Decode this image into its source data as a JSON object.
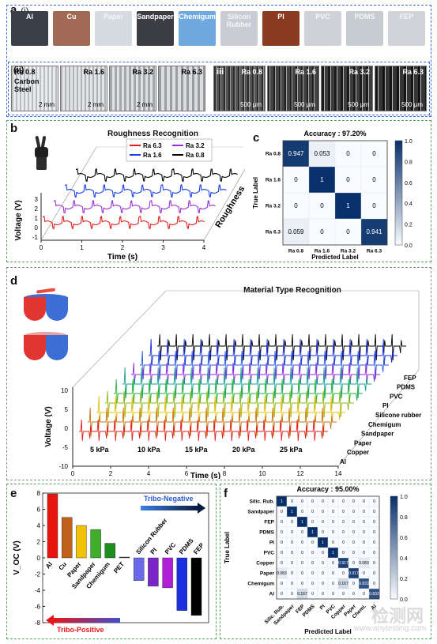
{
  "panel_a": {
    "label": "a",
    "sub_i": "(i)",
    "sub_ii": "(ii)",
    "sub_iii": "iii",
    "materials": [
      {
        "name": "Al",
        "color": "#3a3f4a"
      },
      {
        "name": "Cu",
        "color": "#a06a55"
      },
      {
        "name": "Paper",
        "color": "#d6dbe2"
      },
      {
        "name": "Sandpaper",
        "color": "#3d3e44"
      },
      {
        "name": "Chemigum",
        "color": "#6fa9de"
      },
      {
        "name": "Silicon Rubber",
        "color": "#c9cdd3"
      },
      {
        "name": "PI",
        "color": "#8a3b22"
      },
      {
        "name": "PVC",
        "color": "#cfd3d8"
      },
      {
        "name": "PDMS",
        "color": "#c7ccd2"
      },
      {
        "name": "FEP",
        "color": "#d0d4d9"
      }
    ],
    "steel_samples": [
      {
        "label": "Ra 0.8",
        "scale": "2 mm",
        "extra": "Carbon Steel"
      },
      {
        "label": "Ra 1.6",
        "scale": "2 mm"
      },
      {
        "label": "Ra 3.2",
        "scale": "2 mm"
      },
      {
        "label": "Ra 6.3",
        "scale": ""
      }
    ],
    "micro_samples": [
      {
        "label": "Ra 0.8",
        "scale": "500 μm"
      },
      {
        "label": "Ra 1.6",
        "scale": "500 μm"
      },
      {
        "label": "Ra 3.2",
        "scale": "500 μm"
      },
      {
        "label": "Ra 6.3",
        "scale": "500 μm"
      }
    ]
  },
  "panel_b": {
    "label": "b",
    "title": "Roughness Recognition",
    "ylabel": "Voltage (V)",
    "xlabel": "Time (s)",
    "depth_label": "Roughness",
    "legend": [
      "Ra 6.3",
      "Ra 3.2",
      "Ra 1.6",
      "Ra 0.8"
    ],
    "colors": {
      "Ra 6.3": "#e0201b",
      "Ra 3.2": "#9b2fd6",
      "Ra 1.6": "#1a3fe0",
      "Ra 0.8": "#000000"
    },
    "x_ticks": [
      "0",
      "1",
      "2",
      "3",
      "4"
    ],
    "y_ticks": [
      "-1",
      "0",
      "1",
      "2",
      "3"
    ]
  },
  "panel_c": {
    "label": "c",
    "title": "Accuracy : 97.20%",
    "ylabel": "True Label",
    "xlabel": "Predicted Label",
    "rows": [
      "Ra 0.8",
      "Ra 1.6",
      "Ra 3.2",
      "Ra 6.3"
    ],
    "cols": [
      "Ra 0.8",
      "Ra 1.6",
      "Ra 3.2",
      "Ra 6.3"
    ],
    "matrix": [
      [
        0.947,
        0.053,
        0,
        0
      ],
      [
        0,
        1,
        0,
        0
      ],
      [
        0,
        0,
        1,
        0
      ],
      [
        0.059,
        0,
        0,
        0.941
      ]
    ],
    "colorbar_ticks": [
      "1.0",
      "0.8",
      "0.6",
      "0.4",
      "0.2",
      "0.0"
    ]
  },
  "panel_d": {
    "label": "d",
    "title": "Material Type Recognition",
    "ylabel": "Voltage (V)",
    "xlabel": "Time (s)",
    "x_ticks": [
      "0",
      "2",
      "4",
      "6",
      "8",
      "10",
      "12",
      "14"
    ],
    "y_ticks": [
      "10",
      "5",
      "0",
      "-5",
      "-10"
    ],
    "pressures": [
      "5 kPa",
      "10 kPa",
      "15 kPa",
      "20 kPa",
      "25 kPa"
    ],
    "materials": [
      "Al",
      "Copper",
      "Paper",
      "Sandpaper",
      "Chemigum",
      "Silicone rubber",
      "PI",
      "PVC",
      "PDMS",
      "FEP"
    ],
    "series_colors": [
      "#e0201b",
      "#c9761a",
      "#e3c21a",
      "#8ab81c",
      "#27b23a",
      "#1aa38e",
      "#8f2fd6",
      "#2f5ae0",
      "#1a2fd0",
      "#000000"
    ]
  },
  "panel_e": {
    "label": "e",
    "ylabel": "V_OC (V)",
    "tribo_negative": "Tribo-Negative",
    "tribo_positive": "Tribo-Positive",
    "y_ticks": [
      "8",
      "6",
      "4",
      "2",
      "0",
      "-2",
      "-4",
      "-6",
      "-8"
    ]
  },
  "chart_data": {
    "type": "bar",
    "categories": [
      "Al",
      "Cu",
      "Paper",
      "Sandpaper",
      "Chemigum",
      "PET",
      "Silicon Rubber",
      "PI",
      "PVC",
      "PDMS",
      "FEP"
    ],
    "values": [
      7.9,
      5.0,
      4.0,
      3.5,
      1.8,
      0.1,
      -2.8,
      -3.5,
      -3.7,
      -6.5,
      -7.1
    ],
    "colors": [
      "#e8150f",
      "#c0601a",
      "#f2c200",
      "#3fae2a",
      "#1d8f1d",
      "#444444",
      "#6a6ae8",
      "#7a25c8",
      "#b01fd8",
      "#1a2fe0",
      "#000000"
    ],
    "ylabel": "V_OC (V)",
    "ylim": [
      -8,
      8
    ]
  },
  "panel_f": {
    "label": "f",
    "title": "Accuracy : 95.00%",
    "ylabel": "True Label",
    "xlabel": "Predicted Label",
    "rows": [
      "Silic. Rub.",
      "Sandpaper",
      "FEP",
      "PDMS",
      "PI",
      "PVC",
      "Copper",
      "Paper",
      "Chemigum",
      "Al"
    ],
    "cols": [
      "Silic. Rub.",
      "Sandpaper",
      "FEP",
      "PDMS",
      "PI",
      "PVC",
      "Copper",
      "Paper",
      "Chemi.",
      "Al"
    ],
    "matrix": [
      [
        1,
        0,
        0,
        0,
        0,
        0,
        0,
        0,
        0,
        0
      ],
      [
        0,
        1,
        0,
        0,
        0,
        0,
        0,
        0,
        0,
        0
      ],
      [
        0,
        0,
        1,
        0,
        0,
        0,
        0,
        0,
        0,
        0
      ],
      [
        0,
        0,
        0,
        1,
        0,
        0,
        0,
        0,
        0,
        0
      ],
      [
        0,
        0,
        0,
        0,
        1,
        0,
        0,
        0,
        0,
        0
      ],
      [
        0,
        0,
        0,
        0,
        0,
        1,
        0,
        0,
        0,
        0
      ],
      [
        0,
        0,
        0,
        0,
        0,
        0,
        0.917,
        0,
        0.083,
        0
      ],
      [
        0.083,
        0,
        0,
        0,
        0,
        0,
        0,
        0.917,
        0,
        0
      ],
      [
        0,
        0,
        0,
        0,
        0,
        0,
        0.167,
        0,
        0.833,
        0
      ],
      [
        0,
        0,
        0.167,
        0,
        0,
        0,
        0,
        0,
        0,
        0.833
      ]
    ],
    "colorbar_ticks": [
      "1.0",
      "0.8",
      "0.6",
      "0.4",
      "0.2",
      "0.0"
    ]
  },
  "watermark": {
    "cn": "检测网",
    "url": "www.anytesting.com"
  }
}
